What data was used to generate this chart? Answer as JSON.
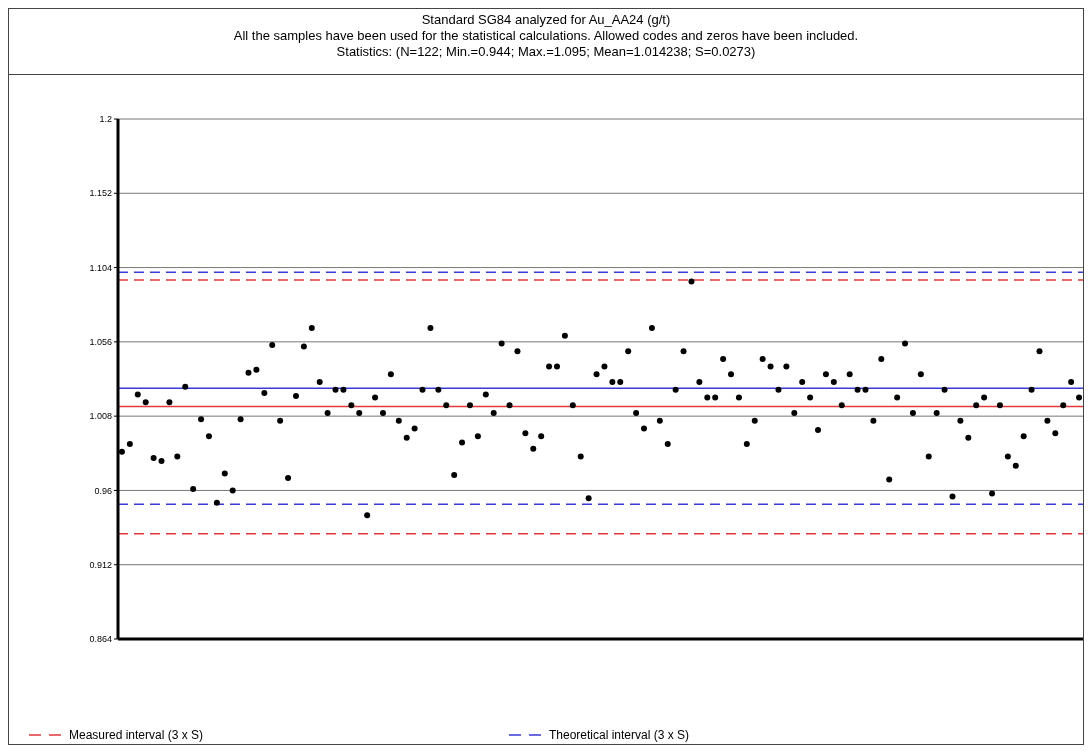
{
  "chart_data": {
    "type": "scatter",
    "title": "Standard SG84 analyzed for Au_AA24 (g/t)",
    "subtitle": "All the samples have been used for the statistical calculations. Allowed codes and zeros have been included.",
    "annotations": [
      "Statistics: (N=122; Min.=0.944; Max.=1.095; Mean=1.014238; S=0.0273)"
    ],
    "categories": [
      null,
      null,
      null,
      null,
      null,
      null,
      null,
      null,
      null,
      null,
      null,
      null,
      null,
      null,
      null,
      null,
      null,
      null,
      null,
      null,
      null,
      null,
      null,
      null,
      null,
      null,
      null,
      null,
      null,
      null,
      null,
      null,
      null,
      null,
      null,
      null,
      null,
      null,
      null,
      null,
      null,
      null,
      null,
      null,
      null,
      null,
      null,
      null,
      null,
      null,
      null,
      null,
      null,
      null,
      null,
      null,
      null,
      null,
      null,
      null,
      null,
      null,
      null,
      null,
      null,
      null,
      null,
      null,
      null,
      null,
      null,
      null,
      null,
      null,
      null,
      null,
      null,
      null,
      null,
      null,
      null,
      null,
      null,
      null,
      null,
      null,
      null,
      null,
      null,
      null,
      null,
      null,
      null,
      null,
      null,
      null,
      null,
      null,
      null,
      null,
      null,
      null,
      null,
      null,
      null,
      null,
      null,
      null,
      null,
      null,
      null,
      null,
      null,
      null,
      null,
      null,
      null,
      null,
      null,
      null,
      null,
      null
    ],
    "series": [
      {
        "color": "#000000",
        "values": [
          0.985,
          0.99,
          1.022,
          1.017,
          0.981,
          0.979,
          1.017,
          0.982,
          1.027,
          0.961,
          1.006,
          0.995,
          0.952,
          0.971,
          0.96,
          1.006,
          1.036,
          1.038,
          1.023,
          1.054,
          1.005,
          0.968,
          1.021,
          1.053,
          1.065,
          1.03,
          1.01,
          1.025,
          1.025,
          1.015,
          1.01,
          0.944,
          1.02,
          1.01,
          1.035,
          1.005,
          0.994,
          1.0,
          1.025,
          1.065,
          1.025,
          1.015,
          0.97,
          0.991,
          1.015,
          0.995,
          1.022,
          1.01,
          1.055,
          1.015,
          1.05,
          0.997,
          0.987,
          0.995,
          1.04,
          1.04,
          1.06,
          1.015,
          0.982,
          0.955,
          1.035,
          1.04,
          1.03,
          1.03,
          1.05,
          1.01,
          1.0,
          1.065,
          1.005,
          0.99,
          1.025,
          1.05,
          1.095,
          1.03,
          1.02,
          1.02,
          1.045,
          1.035,
          1.02,
          0.99,
          1.005,
          1.045,
          1.04,
          1.025,
          1.04,
          1.01,
          1.03,
          1.02,
          0.999,
          1.035,
          1.03,
          1.015,
          1.035,
          1.025,
          1.025,
          1.005,
          1.045,
          0.967,
          1.02,
          1.055,
          1.01,
          1.035,
          0.982,
          1.01,
          1.025,
          0.956,
          1.005,
          0.994,
          1.015,
          1.02,
          0.958,
          1.015,
          0.982,
          0.976,
          0.995,
          1.025,
          1.05,
          1.005,
          0.997,
          1.015,
          1.03,
          1.02
        ]
      }
    ],
    "ylim": [
      0.864,
      1.2
    ],
    "yticks": [
      0.864,
      0.912,
      0.96,
      1.008,
      1.056,
      1.104,
      1.152,
      1.2
    ],
    "grid": "y",
    "marker": "circle",
    "tick_labels": "y",
    "legend": "bottom",
    "ref_lines": [
      {
        "axis": "y",
        "value": 1.096,
        "color": "#e0393e",
        "line_style": "dashed",
        "label": "Measured interval (3 x S)"
      },
      {
        "axis": "y",
        "value": 0.932,
        "color": "#e0393e",
        "line_style": "dashed"
      },
      {
        "axis": "y",
        "value": 1.014238,
        "color": "#e0393e",
        "line_style": "solid"
      },
      {
        "axis": "y",
        "value": 1.101,
        "color": "#3a3ad6",
        "line_style": "dashed",
        "label": "Theoretical interval (3 x S)"
      },
      {
        "axis": "y",
        "value": 0.951,
        "color": "#3a3ad6",
        "line_style": "dashed"
      },
      {
        "axis": "y",
        "value": 1.026,
        "color": "#3a3ad6",
        "line_style": "solid"
      }
    ]
  }
}
